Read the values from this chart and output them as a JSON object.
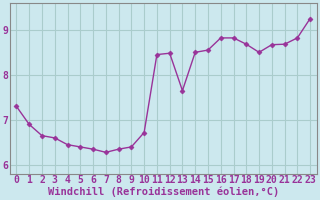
{
  "x": [
    0,
    1,
    2,
    3,
    4,
    5,
    6,
    7,
    8,
    9,
    10,
    11,
    12,
    13,
    14,
    15,
    16,
    17,
    18,
    19,
    20,
    21,
    22,
    23
  ],
  "y": [
    7.3,
    6.9,
    6.65,
    6.6,
    6.45,
    6.4,
    6.35,
    6.28,
    6.35,
    6.4,
    6.72,
    8.45,
    8.48,
    7.65,
    8.5,
    8.55,
    8.82,
    8.82,
    8.68,
    8.5,
    8.67,
    8.68,
    8.82,
    9.25
  ],
  "line_color": "#993399",
  "marker": "D",
  "marker_size": 2.5,
  "bg_color": "#cce8ee",
  "grid_color": "#aacccc",
  "spine_color": "#888888",
  "xlabel": "Windchill (Refroidissement éolien,°C)",
  "xlabel_fontsize": 7.5,
  "tick_fontsize": 7,
  "ylim": [
    5.8,
    9.6
  ],
  "xlim": [
    -0.5,
    23.5
  ],
  "yticks": [
    6,
    7,
    8,
    9
  ],
  "xticks": [
    0,
    1,
    2,
    3,
    4,
    5,
    6,
    7,
    8,
    9,
    10,
    11,
    12,
    13,
    14,
    15,
    16,
    17,
    18,
    19,
    20,
    21,
    22,
    23
  ]
}
